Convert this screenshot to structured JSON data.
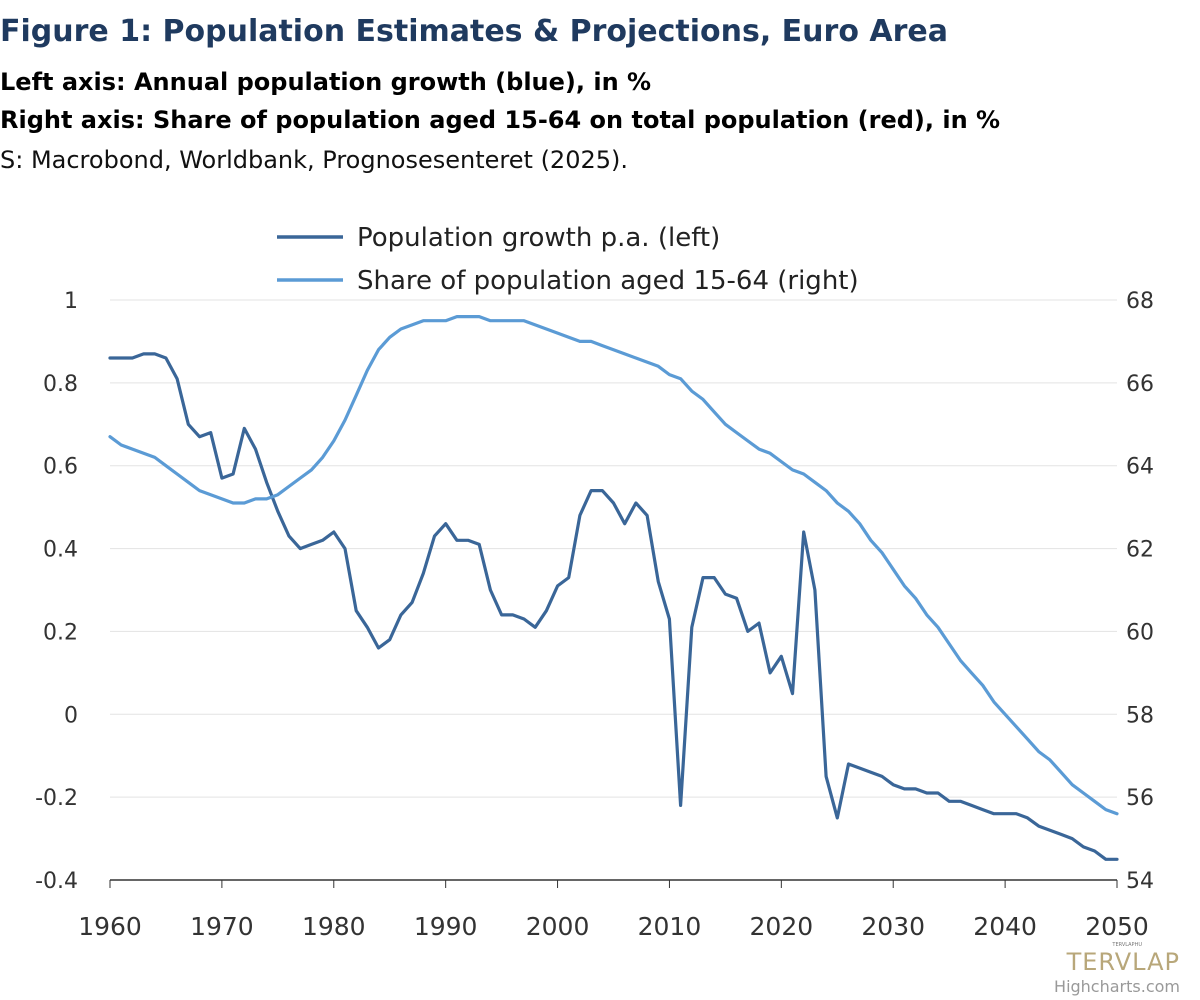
{
  "header": {
    "title": "Figure 1: Population Estimates & Projections, Euro Area",
    "subtitle_left": "Left axis: Annual population growth (blue), in %",
    "subtitle_right": "Right axis: Share of population aged 15-64 on total population (red), in %",
    "source": "S: Macrobond, Worldbank, Prognosesenteret (2025)."
  },
  "credit": "Highcharts.com",
  "watermark": {
    "logo_text": "TERVLAP",
    "small_text": "TERVLAPHU"
  },
  "chart_data": {
    "type": "line",
    "x_range": [
      1960,
      2050
    ],
    "x_ticks": [
      "1960",
      "1970",
      "1980",
      "1990",
      "2000",
      "2010",
      "2020",
      "2030",
      "2040",
      "2050"
    ],
    "left_axis": {
      "min": -0.4,
      "max": 1,
      "ticks": [
        "1",
        "0.8",
        "0.6",
        "0.4",
        "0.2",
        "0",
        "-0.2",
        "-0.4"
      ]
    },
    "right_axis": {
      "min": 54,
      "max": 68,
      "ticks": [
        "68",
        "66",
        "64",
        "62",
        "60",
        "58",
        "56",
        "54"
      ]
    },
    "grid": true,
    "legend_position": "top-center",
    "series": [
      {
        "name": "Population growth p.a. (left)",
        "axis": "left",
        "color": "#3a6698",
        "x": [
          1960,
          1961,
          1962,
          1963,
          1964,
          1965,
          1966,
          1967,
          1968,
          1969,
          1970,
          1971,
          1972,
          1973,
          1974,
          1975,
          1976,
          1977,
          1978,
          1979,
          1980,
          1981,
          1982,
          1983,
          1984,
          1985,
          1986,
          1987,
          1988,
          1989,
          1990,
          1991,
          1992,
          1993,
          1994,
          1995,
          1996,
          1997,
          1998,
          1999,
          2000,
          2001,
          2002,
          2003,
          2004,
          2005,
          2006,
          2007,
          2008,
          2009,
          2010,
          2011,
          2012,
          2013,
          2014,
          2015,
          2016,
          2017,
          2018,
          2019,
          2020,
          2021,
          2022,
          2023,
          2024,
          2025,
          2026,
          2027,
          2028,
          2029,
          2030,
          2031,
          2032,
          2033,
          2034,
          2035,
          2036,
          2037,
          2038,
          2039,
          2040,
          2041,
          2042,
          2043,
          2044,
          2045,
          2046,
          2047,
          2048,
          2049,
          2050
        ],
        "y": [
          0.86,
          0.86,
          0.86,
          0.87,
          0.87,
          0.86,
          0.81,
          0.7,
          0.67,
          0.68,
          0.57,
          0.58,
          0.69,
          0.64,
          0.56,
          0.49,
          0.43,
          0.4,
          0.41,
          0.42,
          0.44,
          0.4,
          0.25,
          0.21,
          0.16,
          0.18,
          0.24,
          0.27,
          0.34,
          0.43,
          0.46,
          0.42,
          0.42,
          0.41,
          0.3,
          0.24,
          0.24,
          0.23,
          0.21,
          0.25,
          0.31,
          0.33,
          0.48,
          0.54,
          0.54,
          0.51,
          0.46,
          0.51,
          0.48,
          0.32,
          0.23,
          -0.22,
          0.21,
          0.33,
          0.33,
          0.29,
          0.28,
          0.2,
          0.22,
          0.1,
          0.14,
          0.05,
          0.44,
          0.3,
          -0.15,
          -0.25,
          -0.12,
          -0.13,
          -0.14,
          -0.15,
          -0.17,
          -0.18,
          -0.18,
          -0.19,
          -0.19,
          -0.21,
          -0.21,
          -0.22,
          -0.23,
          -0.24,
          -0.24,
          -0.24,
          -0.25,
          -0.27,
          -0.28,
          -0.29,
          -0.3,
          -0.32,
          -0.33,
          -0.35,
          -0.35
        ]
      },
      {
        "name": "Share of population aged 15-64 (right)",
        "axis": "right",
        "color": "#5b9bd5",
        "x": [
          1960,
          1961,
          1962,
          1963,
          1964,
          1965,
          1966,
          1967,
          1968,
          1969,
          1970,
          1971,
          1972,
          1973,
          1974,
          1975,
          1976,
          1977,
          1978,
          1979,
          1980,
          1981,
          1982,
          1983,
          1984,
          1985,
          1986,
          1987,
          1988,
          1989,
          1990,
          1991,
          1992,
          1993,
          1994,
          1995,
          1996,
          1997,
          1998,
          1999,
          2000,
          2001,
          2002,
          2003,
          2004,
          2005,
          2006,
          2007,
          2008,
          2009,
          2010,
          2011,
          2012,
          2013,
          2014,
          2015,
          2016,
          2017,
          2018,
          2019,
          2020,
          2021,
          2022,
          2023,
          2024,
          2025,
          2026,
          2027,
          2028,
          2029,
          2030,
          2031,
          2032,
          2033,
          2034,
          2035,
          2036,
          2037,
          2038,
          2039,
          2040,
          2041,
          2042,
          2043,
          2044,
          2045,
          2046,
          2047,
          2048,
          2049,
          2050
        ],
        "y": [
          64.7,
          64.5,
          64.4,
          64.3,
          64.2,
          64.0,
          63.8,
          63.6,
          63.4,
          63.3,
          63.2,
          63.1,
          63.1,
          63.2,
          63.2,
          63.3,
          63.5,
          63.7,
          63.9,
          64.2,
          64.6,
          65.1,
          65.7,
          66.3,
          66.8,
          67.1,
          67.3,
          67.4,
          67.5,
          67.5,
          67.5,
          67.6,
          67.6,
          67.6,
          67.5,
          67.5,
          67.5,
          67.5,
          67.4,
          67.3,
          67.2,
          67.1,
          67.0,
          67.0,
          66.9,
          66.8,
          66.7,
          66.6,
          66.5,
          66.4,
          66.2,
          66.1,
          65.8,
          65.6,
          65.3,
          65.0,
          64.8,
          64.6,
          64.4,
          64.3,
          64.1,
          63.9,
          63.8,
          63.6,
          63.4,
          63.1,
          62.9,
          62.6,
          62.2,
          61.9,
          61.5,
          61.1,
          60.8,
          60.4,
          60.1,
          59.7,
          59.3,
          59.0,
          58.7,
          58.3,
          58.0,
          57.7,
          57.4,
          57.1,
          56.9,
          56.6,
          56.3,
          56.1,
          55.9,
          55.7,
          55.6
        ]
      }
    ]
  }
}
